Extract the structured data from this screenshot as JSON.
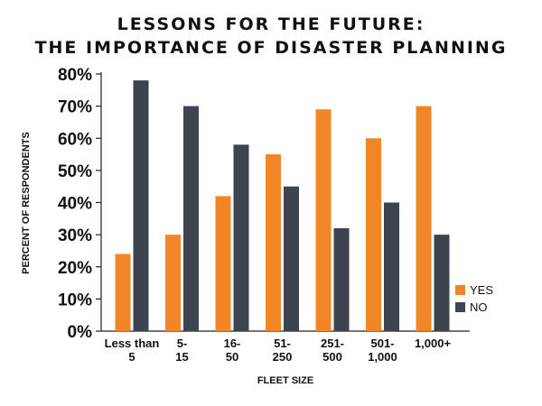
{
  "chart_data": {
    "type": "bar",
    "title_lines": [
      "LESSONS FOR THE FUTURE:",
      "THE IMPORTANCE OF DISASTER PLANNING"
    ],
    "xlabel": "FLEET SIZE",
    "ylabel": "PERCENT OF RESPONDENTS",
    "categories": [
      [
        "Less than",
        "5"
      ],
      [
        "5-",
        "15"
      ],
      [
        "16-",
        "50"
      ],
      [
        "51-",
        "250"
      ],
      [
        "251-",
        "500"
      ],
      [
        "501-",
        "1,000"
      ],
      [
        "1,000+"
      ]
    ],
    "series": [
      {
        "name": "YES",
        "color": "#f28526",
        "values": [
          24,
          30,
          42,
          55,
          69,
          60,
          70
        ]
      },
      {
        "name": "NO",
        "color": "#3d4450",
        "values": [
          78,
          70,
          58,
          45,
          32,
          40,
          30
        ]
      }
    ],
    "ylim": [
      0,
      80
    ],
    "yticks": [
      0,
      10,
      20,
      30,
      40,
      50,
      60,
      70,
      80
    ],
    "ytick_format": "{v}%",
    "legend_position": "right",
    "grid": false
  }
}
